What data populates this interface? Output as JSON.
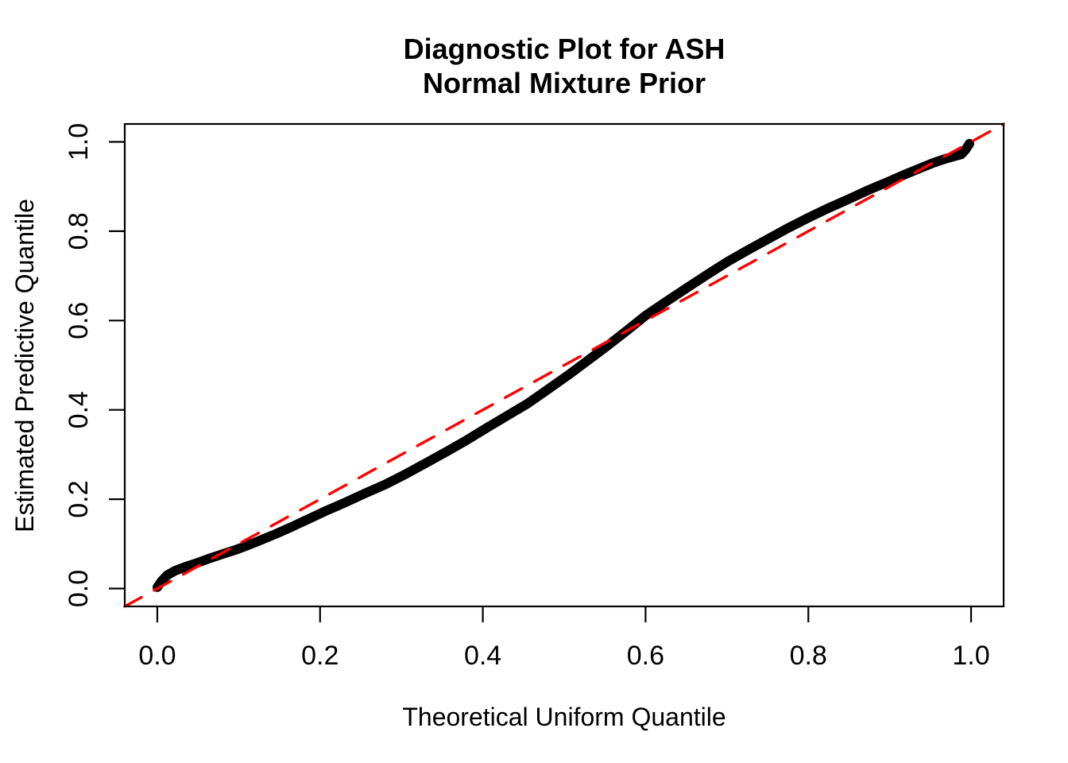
{
  "title": {
    "line1": "Diagnostic Plot for ASH",
    "line2": "Normal Mixture Prior"
  },
  "axes": {
    "x_label": "Theoretical Uniform Quantile",
    "y_label": "Estimated Predictive Quantile",
    "x_tick_labels": [
      "0.0",
      "0.2",
      "0.4",
      "0.6",
      "0.8",
      "1.0"
    ],
    "y_tick_labels": [
      "0.0",
      "0.2",
      "0.4",
      "0.6",
      "0.8",
      "1.0"
    ]
  },
  "colors": {
    "background": "#FFFFFF",
    "foreground": "#000000",
    "curve": "#000000",
    "reference_line": "#FF0000"
  },
  "chart_data": {
    "type": "line",
    "title": "Diagnostic Plot for ASH\nNormal Mixture Prior",
    "xlabel": "Theoretical Uniform Quantile",
    "ylabel": "Estimated Predictive Quantile",
    "xlim": [
      -0.04,
      1.04
    ],
    "ylim": [
      -0.04,
      1.04
    ],
    "x_ticks": [
      0.0,
      0.2,
      0.4,
      0.6,
      0.8,
      1.0
    ],
    "y_ticks": [
      0.0,
      0.2,
      0.4,
      0.6,
      0.8,
      1.0
    ],
    "grid": false,
    "legend": null,
    "series": [
      {
        "name": "estimated-predictive-quantiles",
        "style": "thick-point-curve",
        "color": "#000000",
        "line_width": 12,
        "points": [
          [
            0.0,
            0.003
          ],
          [
            0.005,
            0.016
          ],
          [
            0.012,
            0.03
          ],
          [
            0.022,
            0.04
          ],
          [
            0.035,
            0.049
          ],
          [
            0.05,
            0.058
          ],
          [
            0.065,
            0.068
          ],
          [
            0.08,
            0.077
          ],
          [
            0.095,
            0.086
          ],
          [
            0.11,
            0.096
          ],
          [
            0.125,
            0.107
          ],
          [
            0.145,
            0.122
          ],
          [
            0.165,
            0.138
          ],
          [
            0.185,
            0.155
          ],
          [
            0.205,
            0.172
          ],
          [
            0.23,
            0.192
          ],
          [
            0.255,
            0.213
          ],
          [
            0.28,
            0.233
          ],
          [
            0.305,
            0.256
          ],
          [
            0.33,
            0.281
          ],
          [
            0.355,
            0.306
          ],
          [
            0.38,
            0.332
          ],
          [
            0.405,
            0.36
          ],
          [
            0.43,
            0.387
          ],
          [
            0.455,
            0.414
          ],
          [
            0.48,
            0.446
          ],
          [
            0.505,
            0.478
          ],
          [
            0.53,
            0.512
          ],
          [
            0.555,
            0.546
          ],
          [
            0.578,
            0.579
          ],
          [
            0.6,
            0.611
          ],
          [
            0.625,
            0.642
          ],
          [
            0.65,
            0.672
          ],
          [
            0.675,
            0.702
          ],
          [
            0.7,
            0.731
          ],
          [
            0.725,
            0.757
          ],
          [
            0.75,
            0.782
          ],
          [
            0.775,
            0.807
          ],
          [
            0.8,
            0.83
          ],
          [
            0.825,
            0.852
          ],
          [
            0.85,
            0.872
          ],
          [
            0.875,
            0.893
          ],
          [
            0.9,
            0.912
          ],
          [
            0.92,
            0.928
          ],
          [
            0.94,
            0.943
          ],
          [
            0.955,
            0.954
          ],
          [
            0.97,
            0.963
          ],
          [
            0.98,
            0.968
          ],
          [
            0.988,
            0.972
          ],
          [
            0.993,
            0.982
          ],
          [
            0.998,
            0.996
          ]
        ]
      },
      {
        "name": "identity-reference-line",
        "style": "dashed",
        "color": "#FF0000",
        "line_width": 3.4,
        "points": [
          [
            -0.04,
            -0.04
          ],
          [
            1.04,
            1.04
          ]
        ]
      }
    ]
  }
}
